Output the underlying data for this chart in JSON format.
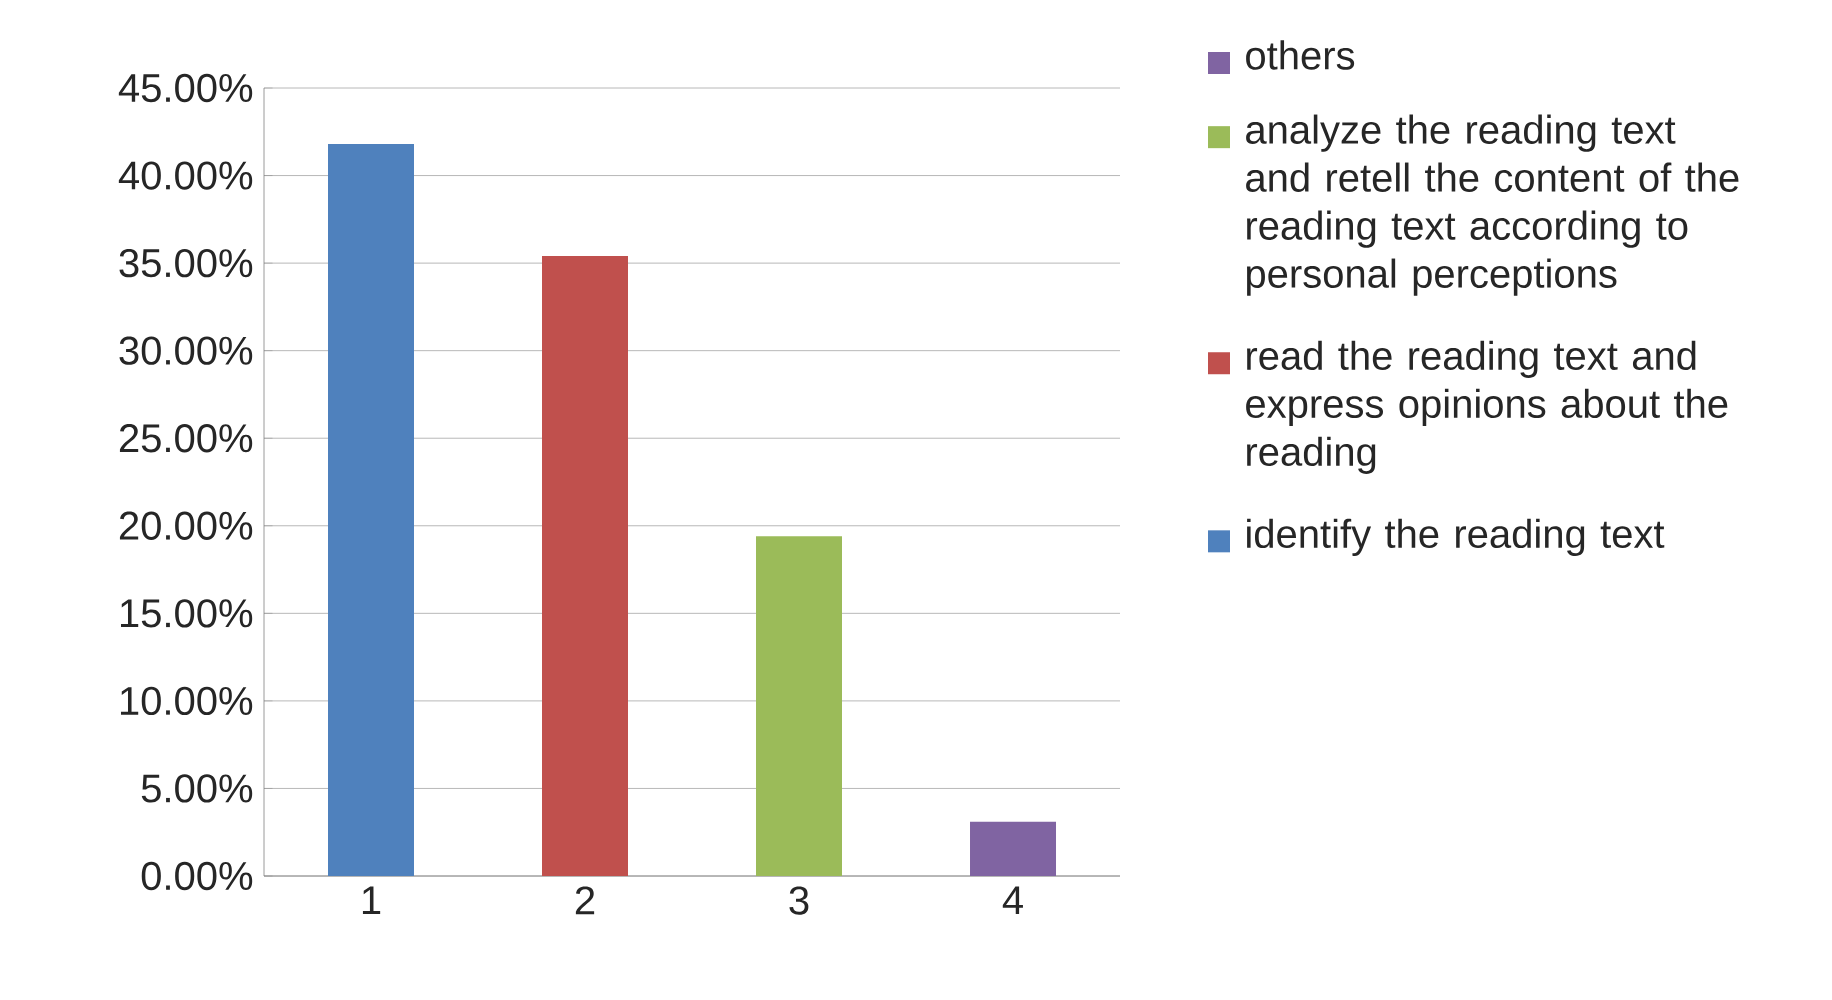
{
  "chart_data": {
    "type": "bar",
    "categories": [
      "1",
      "2",
      "3",
      "4"
    ],
    "series": [
      {
        "name": "identify the reading text",
        "color": "#4f81bd",
        "values": [
          41.8,
          null,
          null,
          null
        ]
      },
      {
        "name": "read the reading text and express opinions about the reading",
        "color": "#c0504d",
        "values": [
          null,
          35.4,
          null,
          null
        ]
      },
      {
        "name": "analyze the reading text and retell the content of the reading text according to personal perceptions",
        "color": "#9bbb59",
        "values": [
          null,
          null,
          19.4,
          null
        ]
      },
      {
        "name": "others",
        "color": "#8064a2",
        "values": [
          null,
          null,
          null,
          3.1
        ]
      }
    ],
    "ylim": [
      0,
      45
    ],
    "yticks": [
      {
        "value": 0,
        "label": "0.00%"
      },
      {
        "value": 5,
        "label": "5.00%"
      },
      {
        "value": 10,
        "label": "10.00%"
      },
      {
        "value": 15,
        "label": "15.00%"
      },
      {
        "value": 20,
        "label": "20.00%"
      },
      {
        "value": 25,
        "label": "25.00%"
      },
      {
        "value": 30,
        "label": "30.00%"
      },
      {
        "value": 35,
        "label": "35.00%"
      },
      {
        "value": 40,
        "label": "40.00%"
      },
      {
        "value": 45,
        "label": "45.00%"
      }
    ],
    "grid": "y",
    "legend": "right"
  }
}
